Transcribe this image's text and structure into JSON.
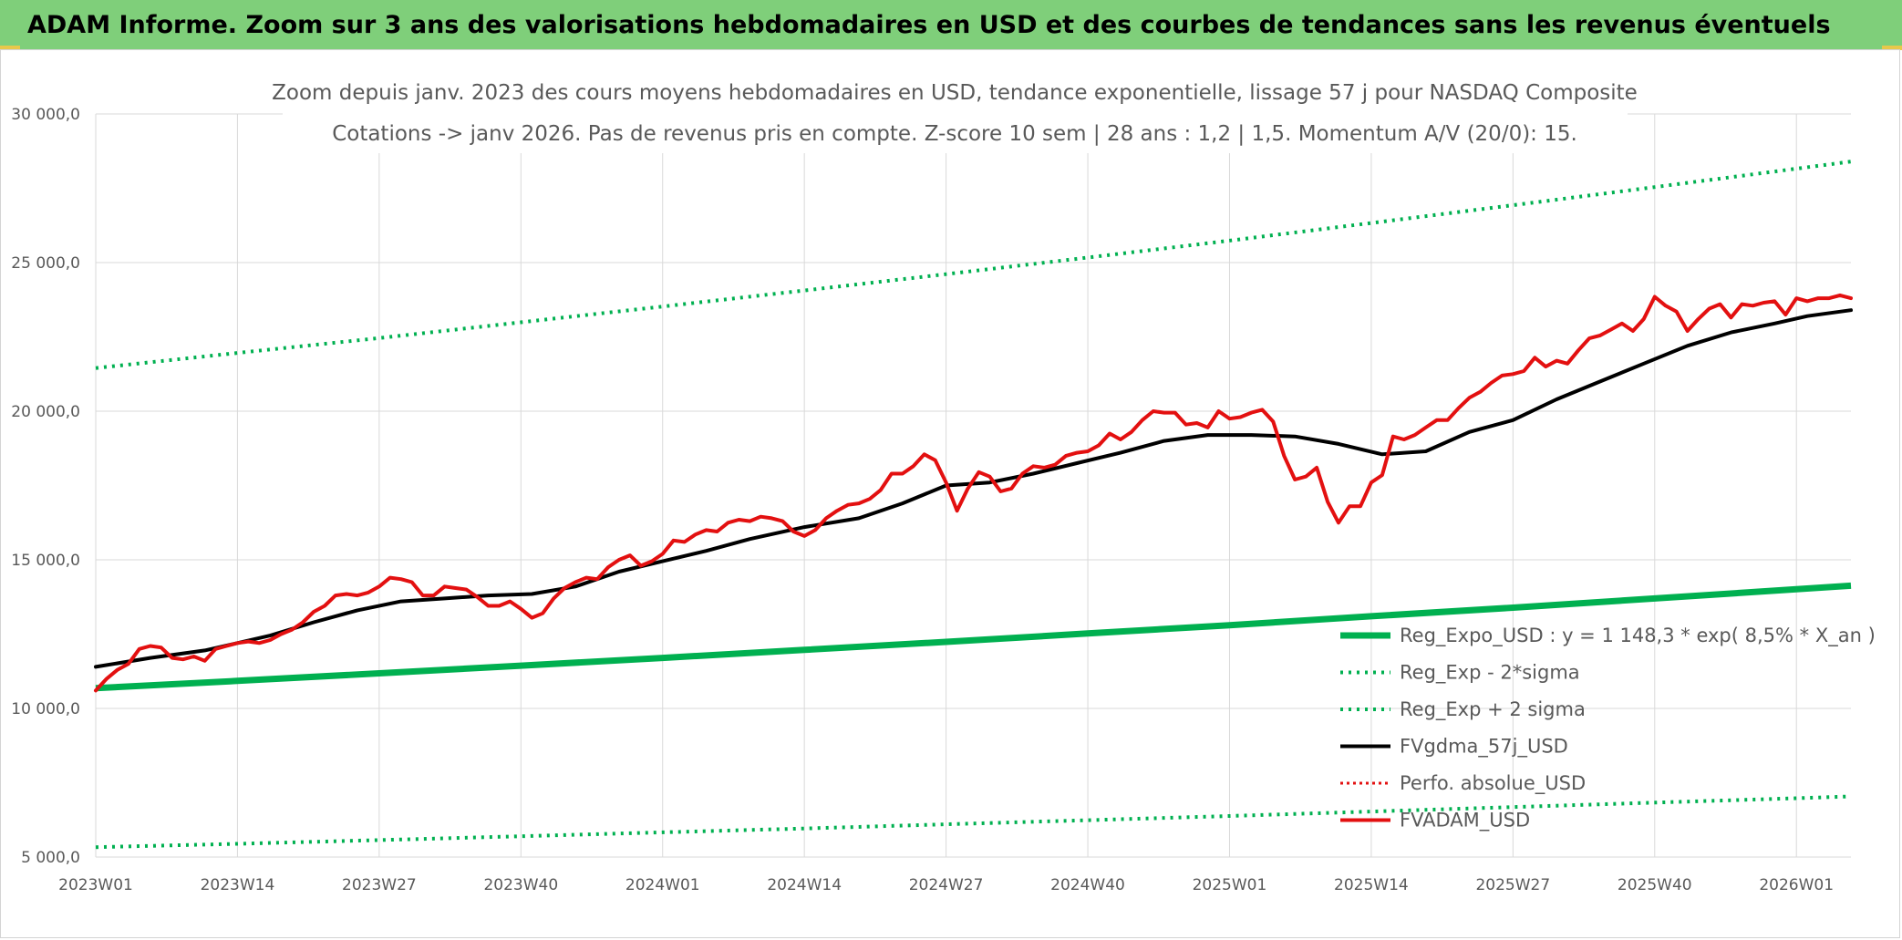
{
  "header": {
    "title": "ADAM Informe. Zoom sur 3 ans des valorisations hebdomadaires en USD et des courbes de tendances sans les revenus éventuels"
  },
  "colors": {
    "header_bg": "#7fcf7a",
    "reg_expo": "#00b050",
    "fv57": "#000000",
    "adam": "#e31010",
    "perfo": "#e31010"
  },
  "chart_data": {
    "type": "line",
    "title": "Zoom depuis janv. 2023 des cours moyens hebdomadaires en USD, tendance exponentielle, lissage 57 j pour NASDAQ Composite",
    "subtitle": "Cotations -> janv 2026. Pas de revenus pris en compte. Z-score 10 sem | 28 ans : 1,2 | 1,5. Momentum A/V (20/0): 15.",
    "xlabel": "",
    "ylabel": "",
    "ylim": [
      5000,
      30000
    ],
    "y_ticks": [
      "5 000,0",
      "10 000,0",
      "15 000,0",
      "20 000,0",
      "25 000,0",
      "30 000,0"
    ],
    "x_ticks": [
      "2023W01",
      "2023W14",
      "2023W27",
      "2023W40",
      "2024W01",
      "2024W14",
      "2024W27",
      "2024W40",
      "2025W01",
      "2025W14",
      "2025W27",
      "2025W40",
      "2026W01"
    ],
    "grid": true,
    "legend_position": "bottom-right",
    "series": [
      {
        "name": "Reg_Expo_USD : y = 1 148,3 * exp( 8,5% *  X_an )",
        "style": "thick",
        "x": [
          0,
          13,
          26,
          39,
          52,
          65,
          78,
          91,
          104,
          117,
          130,
          143,
          156,
          161
        ],
        "values": [
          10680,
          10925,
          11180,
          11440,
          11700,
          11970,
          12240,
          12520,
          12800,
          13100,
          13390,
          13700,
          14010,
          14130
        ]
      },
      {
        "name": "Reg_Exp - 2*sigma",
        "style": "dotted",
        "x": [
          0,
          13,
          26,
          39,
          52,
          65,
          78,
          91,
          104,
          117,
          130,
          143,
          156,
          161
        ],
        "values": [
          5330,
          5445,
          5570,
          5700,
          5830,
          5960,
          6100,
          6240,
          6380,
          6530,
          6680,
          6830,
          6980,
          7040
        ]
      },
      {
        "name": "Reg_Exp + 2 sigma",
        "style": "dotted",
        "x": [
          0,
          13,
          26,
          39,
          52,
          65,
          78,
          91,
          104,
          117,
          130,
          143,
          156,
          161
        ],
        "values": [
          21450,
          21960,
          22460,
          22990,
          23520,
          24060,
          24610,
          25170,
          25740,
          26330,
          26930,
          27540,
          28160,
          28400
        ]
      },
      {
        "name": "FVgdma_57j_USD",
        "style": "solid",
        "x": [
          0,
          5,
          10,
          13,
          16,
          20,
          24,
          28,
          32,
          36,
          40,
          44,
          48,
          52,
          56,
          60,
          65,
          70,
          74,
          78,
          82,
          86,
          90,
          94,
          98,
          102,
          106,
          110,
          114,
          118,
          122,
          126,
          130,
          134,
          138,
          142,
          146,
          150,
          154,
          157,
          161
        ],
        "values": [
          11400,
          11700,
          11950,
          12200,
          12450,
          12900,
          13300,
          13600,
          13700,
          13800,
          13850,
          14100,
          14600,
          14950,
          15300,
          15700,
          16100,
          16400,
          16900,
          17500,
          17600,
          17900,
          18250,
          18600,
          19000,
          19200,
          19200,
          19150,
          18900,
          18550,
          18650,
          19300,
          19700,
          20400,
          21000,
          21600,
          22200,
          22650,
          22950,
          23200,
          23400
        ]
      },
      {
        "name": "Perfo. absolue_USD",
        "style": "dotted-red",
        "x": [],
        "values": []
      },
      {
        "name": "FVADAM_USD",
        "style": "solid-red",
        "x": [
          0,
          1,
          2,
          3,
          4,
          5,
          6,
          7,
          8,
          9,
          10,
          11,
          12,
          13,
          14,
          15,
          16,
          17,
          18,
          19,
          20,
          21,
          22,
          23,
          24,
          25,
          26,
          27,
          28,
          29,
          30,
          31,
          32,
          33,
          34,
          35,
          36,
          37,
          38,
          39,
          40,
          41,
          42,
          43,
          44,
          45,
          46,
          47,
          48,
          49,
          50,
          51,
          52,
          53,
          54,
          55,
          56,
          57,
          58,
          59,
          60,
          61,
          62,
          63,
          64,
          65,
          66,
          67,
          68,
          69,
          70,
          71,
          72,
          73,
          74,
          75,
          76,
          77,
          78,
          79,
          80,
          81,
          82,
          83,
          84,
          85,
          86,
          87,
          88,
          89,
          90,
          91,
          92,
          93,
          94,
          95,
          96,
          97,
          98,
          99,
          100,
          101,
          102,
          103,
          104,
          105,
          106,
          107,
          108,
          109,
          110,
          111,
          112,
          113,
          114,
          115,
          116,
          117,
          118,
          119,
          120,
          121,
          122,
          123,
          124,
          125,
          126,
          127,
          128,
          129,
          130,
          131,
          132,
          133,
          134,
          135,
          136,
          137,
          138,
          139,
          140,
          141,
          142,
          143,
          144,
          145,
          146,
          147,
          148,
          149,
          150,
          151,
          152,
          153,
          154,
          155,
          156,
          157,
          158,
          159,
          160,
          161
        ],
        "values": [
          10600,
          11000,
          11300,
          11500,
          12000,
          12100,
          12050,
          11700,
          11650,
          11750,
          11600,
          12000,
          12100,
          12200,
          12250,
          12200,
          12300,
          12500,
          12650,
          12900,
          13250,
          13450,
          13800,
          13850,
          13800,
          13900,
          14100,
          14400,
          14350,
          14250,
          13800,
          13800,
          14100,
          14050,
          14000,
          13750,
          13450,
          13450,
          13600,
          13350,
          13050,
          13200,
          13700,
          14050,
          14250,
          14400,
          14350,
          14750,
          15000,
          15150,
          14800,
          14950,
          15200,
          15650,
          15600,
          15850,
          16000,
          15950,
          16250,
          16350,
          16300,
          16450,
          16400,
          16300,
          15950,
          15800,
          16000,
          16400,
          16650,
          16850,
          16900,
          17050,
          17350,
          17900,
          17900,
          18150,
          18550,
          18350,
          17600,
          16650,
          17400,
          17950,
          17800,
          17300,
          17400,
          17900,
          18150,
          18100,
          18200,
          18500,
          18600,
          18650,
          18850,
          19250,
          19050,
          19300,
          19700,
          20000,
          19950,
          19950,
          19550,
          19600,
          19450,
          20000,
          19750,
          19800,
          19950,
          20050,
          19650,
          18500,
          17700,
          17800,
          18100,
          16950,
          16250,
          16800,
          16800,
          17600,
          17850,
          19150,
          19050,
          19200,
          19450,
          19700,
          19700,
          20100,
          20450,
          20650,
          20950,
          21200,
          21250,
          21350,
          21800,
          21500,
          21700,
          21600,
          22050,
          22450,
          22550,
          22750,
          22950,
          22700,
          23100,
          23850,
          23550,
          23350,
          22700,
          23100,
          23450,
          23600,
          23150,
          23600,
          23550,
          23650,
          23700,
          23250,
          23800,
          23700,
          23800,
          23800,
          23900,
          23800
        ]
      }
    ]
  }
}
